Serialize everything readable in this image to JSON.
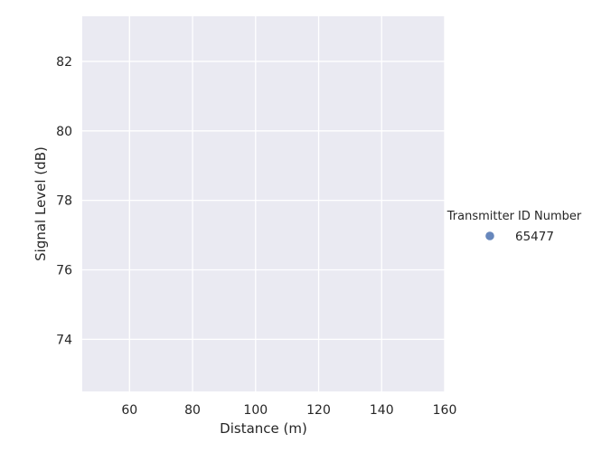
{
  "chart_data": {
    "type": "scatter",
    "title": "",
    "xlabel": "Distance (m)",
    "ylabel": "Signal Level (dB)",
    "xlim": [
      45,
      160
    ],
    "ylim": [
      72.5,
      83.3
    ],
    "xticks": [
      60,
      80,
      100,
      120,
      140,
      160
    ],
    "yticks": [
      74,
      76,
      78,
      80,
      82
    ],
    "grid": true,
    "legend": {
      "title": "Transmitter ID Number",
      "placement": "right",
      "entries": [
        {
          "label": "65477",
          "color": "#4c72b0"
        }
      ]
    },
    "series": [
      {
        "name": "65477",
        "color": "#4c72b0",
        "points": []
      }
    ]
  },
  "colors": {
    "plot_background": "#eaeaf2",
    "grid": "#ffffff",
    "text": "#262626"
  }
}
